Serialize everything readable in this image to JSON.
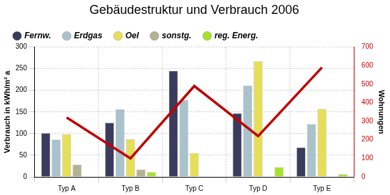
{
  "chart_data": {
    "type": "bar",
    "title": "Gebäudestruktur und Verbrauch 2006",
    "categories": [
      "Typ A",
      "Typ B",
      "Typ C",
      "Typ D",
      "Typ E"
    ],
    "series": [
      {
        "name": "Fernw.",
        "color": "#3b3b5e",
        "values": [
          101,
          125,
          245,
          147,
          68
        ]
      },
      {
        "name": "Erdgas",
        "color": "#a9c2cb",
        "values": [
          86,
          156,
          178,
          211,
          122
        ]
      },
      {
        "name": "Oel",
        "color": "#e6de5a",
        "values": [
          98,
          87,
          55,
          267,
          157
        ]
      },
      {
        "name": "sonstg.",
        "color": "#b3b394",
        "values": [
          28,
          17,
          1,
          1,
          1
        ]
      },
      {
        "name": "reg. Energ.",
        "color": "#a6e22a",
        "values": [
          1,
          11,
          1,
          22,
          6
        ]
      },
      {
        "type": "line",
        "axis": "y2",
        "color": "#c00000",
        "values": [
          320,
          100,
          490,
          220,
          590
        ]
      }
    ],
    "ylabel": "Verbrauch in kWh/m² a",
    "y2label": "Wohnungen",
    "ylim": [
      0,
      300
    ],
    "yticks": [
      0,
      50,
      100,
      150,
      200,
      250,
      300
    ],
    "y2lim": [
      0,
      700
    ],
    "y2ticks": [
      0,
      100,
      200,
      300,
      400,
      500,
      600,
      700
    ],
    "grid": true,
    "legend": "top"
  }
}
